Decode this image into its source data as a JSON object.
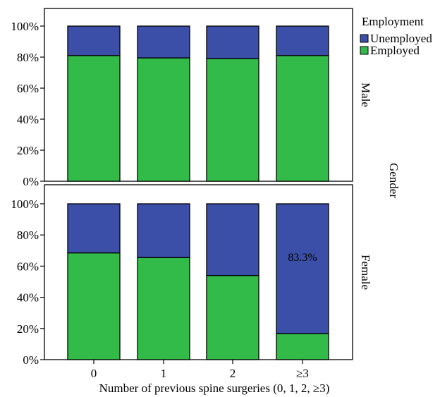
{
  "chart_data": {
    "type": "bar",
    "stacked": true,
    "categories": [
      "0",
      "1",
      "2",
      "≥3"
    ],
    "xlabel": "Number of previous spine surgeries (0, 1, 2, ≥3)",
    "ylim": [
      0,
      100
    ],
    "y_ticks": [
      "0%",
      "20%",
      "40%",
      "60%",
      "80%",
      "100%"
    ],
    "legend": {
      "title": "Employment",
      "placement": "top-right",
      "items": [
        {
          "name": "Unemployed",
          "color": "#3c4fa8"
        },
        {
          "name": "Employed",
          "color": "#33bb4a"
        }
      ]
    },
    "facet_label": "Gender",
    "panels": [
      {
        "label": "Male",
        "series": [
          {
            "name": "Employed",
            "values": [
              81,
              79.5,
              79,
              81
            ]
          },
          {
            "name": "Unemployed",
            "values": [
              19,
              20.5,
              21,
              19
            ]
          }
        ],
        "annotations": []
      },
      {
        "label": "Female",
        "series": [
          {
            "name": "Employed",
            "values": [
              68.5,
              65.5,
              54,
              16.7
            ]
          },
          {
            "name": "Unemployed",
            "values": [
              31.5,
              34.5,
              46,
              83.3
            ]
          }
        ],
        "annotations": [
          {
            "category": "≥3",
            "series": "Unemployed",
            "text": "83.3%"
          }
        ]
      }
    ],
    "grid": false
  }
}
